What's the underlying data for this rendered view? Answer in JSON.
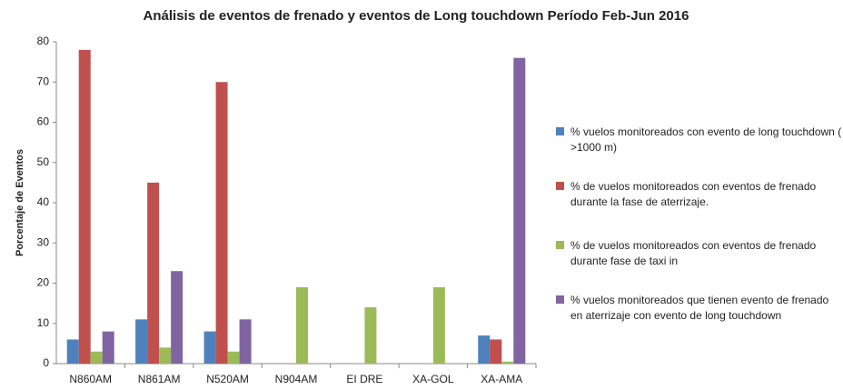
{
  "chart_data": {
    "type": "bar",
    "title": "Análisis de eventos de frenado  y eventos de Long touchdown Período Feb-Jun 2016",
    "ylabel": "Porcentaje de Eventos",
    "categories": [
      "N860AM",
      "N861AM",
      "N520AM",
      "N904AM",
      "EI DRE",
      "XA-GOL",
      "XA-AMA"
    ],
    "series": [
      {
        "name": "% vuelos monitoreados con evento de long touchdown ( >1000 m)",
        "color": "#4f81bd",
        "values": [
          6,
          11,
          8,
          0,
          0,
          0,
          7
        ]
      },
      {
        "name": "% de vuelos monitoreados con eventos de frenado durante la fase de aterrizaje.",
        "color": "#c0504d",
        "values": [
          78,
          45,
          70,
          0,
          0,
          0,
          6
        ]
      },
      {
        "name": "% de vuelos monitoreados con eventos de frenado durante fase de taxi in",
        "color": "#9bbb59",
        "values": [
          3,
          4,
          3,
          19,
          14,
          19,
          0.5
        ]
      },
      {
        "name": "% vuelos monitoreados  que tienen evento de frenado en aterrizaje con evento de long touchdown",
        "color": "#8064a2",
        "values": [
          8,
          23,
          11,
          0,
          0,
          0,
          76
        ]
      }
    ],
    "ylim": [
      0,
      80
    ],
    "yticks": [
      0,
      10,
      20,
      30,
      40,
      50,
      60,
      70,
      80
    ],
    "grid": false,
    "legend": "right"
  }
}
